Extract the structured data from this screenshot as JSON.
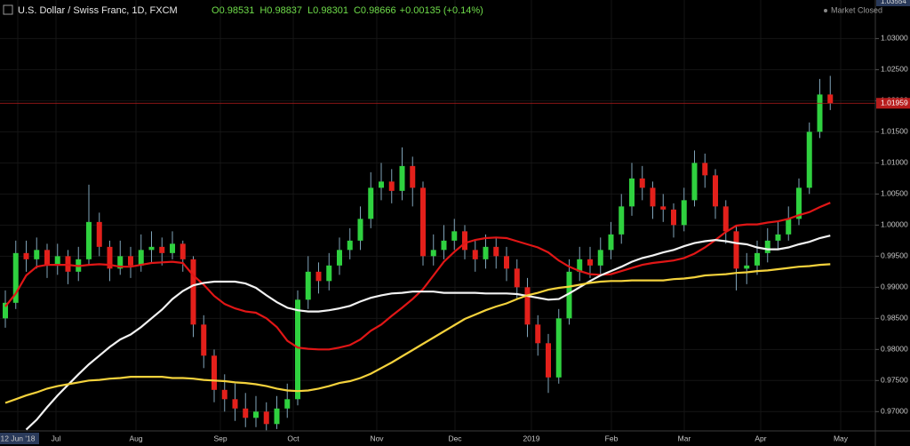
{
  "chart_data": {
    "type": "candlestick",
    "header": {
      "symbol": "U.S. Dollar / Swiss Franc, 1D, FXCM",
      "ohlc": [
        {
          "label": "O",
          "value": 0.98531
        },
        {
          "label": "H",
          "value": 0.98837
        },
        {
          "label": "L",
          "value": 0.98301
        },
        {
          "label": "C",
          "value": 0.98666
        }
      ],
      "change": "+0.00135 (+0.14%)"
    },
    "status": "Market Closed",
    "x_labels": [
      "12 Jun '18",
      "Jul",
      "Aug",
      "Sep",
      "Oct",
      "Nov",
      "Dec",
      "2019",
      "Feb",
      "Mar",
      "Apr",
      "May"
    ],
    "candles": {
      "up_color": "#2fd13f",
      "down_color": "#e3201b",
      "wick_color": "#7fa3b8",
      "open": [
        0.985,
        0.9875,
        0.9955,
        0.9945,
        0.996,
        0.9935,
        0.995,
        0.9925,
        0.9945,
        1.0005,
        0.9965,
        0.993,
        0.995,
        0.9935,
        0.996,
        0.9965,
        0.9955,
        0.997,
        0.9945,
        0.984,
        0.979,
        0.9735,
        0.972,
        0.9705,
        0.969,
        0.97,
        0.968,
        0.9705,
        0.972,
        0.988,
        0.9925,
        0.991,
        0.9935,
        0.996,
        0.9975,
        1.001,
        1.006,
        1.007,
        1.0055,
        1.0095,
        1.006,
        0.995,
        0.996,
        0.9975,
        0.999,
        0.996,
        0.9945,
        0.9965,
        0.995,
        0.993,
        0.99,
        0.984,
        0.981,
        0.9755,
        0.985,
        0.9925,
        0.9945,
        0.9935,
        0.996,
        0.9985,
        1.003,
        1.0075,
        1.006,
        1.003,
        1.0025,
        1.0,
        1.004,
        1.01,
        1.008,
        1.003,
        0.999,
        0.993,
        0.9935,
        0.9955,
        0.9975,
        0.9985,
        1.001,
        1.006,
        1.015,
        1.021
      ],
      "high": [
        0.9895,
        0.9975,
        0.9975,
        0.998,
        0.997,
        0.997,
        0.996,
        0.9965,
        1.0065,
        1.002,
        0.9975,
        0.9975,
        0.9965,
        0.9985,
        0.999,
        0.998,
        0.999,
        0.9975,
        0.995,
        0.9855,
        0.98,
        0.976,
        0.9745,
        0.973,
        0.9725,
        0.9715,
        0.9725,
        0.9745,
        0.9895,
        0.995,
        0.994,
        0.9955,
        0.998,
        0.9995,
        1.003,
        1.0085,
        1.01,
        1.009,
        1.0125,
        1.011,
        1.007,
        0.9985,
        1.0,
        1.001,
        1.0,
        0.9975,
        0.9985,
        0.998,
        0.9965,
        0.9945,
        0.9915,
        0.9855,
        0.9825,
        0.9865,
        0.9945,
        0.9965,
        0.9965,
        0.998,
        1.0005,
        1.005,
        1.01,
        1.0095,
        1.007,
        1.005,
        1.0035,
        1.006,
        1.012,
        1.0115,
        1.009,
        1.004,
        1.0,
        0.9955,
        0.9975,
        0.9995,
        1.0005,
        1.003,
        1.0075,
        1.0165,
        1.0235,
        1.024
      ],
      "low": [
        0.9835,
        0.9865,
        0.9925,
        0.993,
        0.9915,
        0.992,
        0.9905,
        0.991,
        0.9935,
        0.995,
        0.991,
        0.992,
        0.9915,
        0.9925,
        0.994,
        0.9935,
        0.9945,
        0.9925,
        0.982,
        0.977,
        0.9715,
        0.97,
        0.9685,
        0.9675,
        0.9675,
        0.967,
        0.9672,
        0.969,
        0.971,
        0.9865,
        0.989,
        0.9895,
        0.992,
        0.9945,
        0.996,
        0.9995,
        1.004,
        1.0035,
        1.004,
        1.003,
        0.9935,
        0.9935,
        0.9945,
        0.996,
        0.9945,
        0.9925,
        0.993,
        0.993,
        0.991,
        0.988,
        0.982,
        0.979,
        0.973,
        0.9745,
        0.984,
        0.991,
        0.9915,
        0.992,
        0.9945,
        0.997,
        1.0015,
        1.004,
        1.001,
        1.0005,
        0.998,
        0.999,
        1.003,
        1.006,
        1.001,
        0.997,
        0.9895,
        0.9905,
        0.992,
        0.994,
        0.996,
        0.9975,
        1.0,
        1.005,
        1.014,
        1.0185
      ],
      "close": [
        0.9875,
        0.9955,
        0.9945,
        0.996,
        0.9935,
        0.995,
        0.9925,
        0.9945,
        1.0005,
        0.9965,
        0.993,
        0.995,
        0.9935,
        0.996,
        0.9965,
        0.9955,
        0.997,
        0.9945,
        0.984,
        0.979,
        0.9735,
        0.972,
        0.9705,
        0.969,
        0.97,
        0.968,
        0.9705,
        0.972,
        0.988,
        0.9925,
        0.991,
        0.9935,
        0.996,
        0.9975,
        1.001,
        1.006,
        1.007,
        1.0055,
        1.0095,
        1.006,
        0.995,
        0.996,
        0.9975,
        0.999,
        0.996,
        0.9945,
        0.9965,
        0.995,
        0.993,
        0.99,
        0.984,
        0.981,
        0.9755,
        0.985,
        0.9925,
        0.9945,
        0.9935,
        0.996,
        0.9985,
        1.003,
        1.0075,
        1.006,
        1.003,
        1.0025,
        1.0,
        1.004,
        1.01,
        1.008,
        1.003,
        0.999,
        0.993,
        0.9935,
        0.9955,
        0.9975,
        0.9985,
        1.001,
        1.006,
        1.015,
        1.021,
        1.0196
      ]
    },
    "series": [
      {
        "color": "#e01616",
        "values": [
          0.9869,
          0.989,
          0.9919,
          0.9933,
          0.9936,
          0.9936,
          0.9936,
          0.9934,
          0.9936,
          0.9937,
          0.9936,
          0.9933,
          0.9933,
          0.9936,
          0.9939,
          0.994,
          0.9941,
          0.9939,
          0.9919,
          0.9904,
          0.9886,
          0.9873,
          0.9866,
          0.9861,
          0.9859,
          0.985,
          0.9836,
          0.9814,
          0.9803,
          0.9801,
          0.98,
          0.98,
          0.9803,
          0.9807,
          0.9816,
          0.983,
          0.984,
          0.9854,
          0.9867,
          0.9881,
          0.9897,
          0.9919,
          0.9941,
          0.9957,
          0.9971,
          0.9976,
          0.9979,
          0.998,
          0.9979,
          0.9974,
          0.9969,
          0.9964,
          0.9956,
          0.9943,
          0.9933,
          0.9926,
          0.9921,
          0.992,
          0.9921,
          0.9926,
          0.9931,
          0.9936,
          0.9939,
          0.9941,
          0.9943,
          0.9947,
          0.9954,
          0.9964,
          0.9976,
          0.9989,
          0.9999,
          1.0001,
          1.0001,
          1.0004,
          1.0006,
          1.001,
          1.0016,
          1.0021,
          1.0029,
          1.0036
        ]
      },
      {
        "color": "#f2f2f2",
        "values": [
          null,
          null,
          0.9671,
          0.9687,
          0.9707,
          0.9726,
          0.9743,
          0.976,
          0.9776,
          0.979,
          0.9804,
          0.9816,
          0.9824,
          0.9836,
          0.985,
          0.9864,
          0.9881,
          0.9894,
          0.9903,
          0.9907,
          0.9909,
          0.9909,
          0.9909,
          0.9906,
          0.9899,
          0.9887,
          0.9876,
          0.9867,
          0.9863,
          0.9861,
          0.9861,
          0.9863,
          0.9866,
          0.987,
          0.9877,
          0.9883,
          0.9887,
          0.989,
          0.9891,
          0.9893,
          0.9893,
          0.9893,
          0.9891,
          0.9891,
          0.9891,
          0.9891,
          0.989,
          0.989,
          0.989,
          0.9889,
          0.9886,
          0.9883,
          0.988,
          0.9881,
          0.989,
          0.99,
          0.991,
          0.9919,
          0.9926,
          0.9933,
          0.9941,
          0.9947,
          0.9951,
          0.9956,
          0.996,
          0.9966,
          0.9971,
          0.9974,
          0.9976,
          0.9974,
          0.9971,
          0.9969,
          0.9964,
          0.9961,
          0.9961,
          0.9964,
          0.9969,
          0.9973,
          0.9979,
          0.9983
        ]
      },
      {
        "color": "#f4d23c",
        "values": [
          0.9714,
          0.972,
          0.9726,
          0.9731,
          0.9737,
          0.9741,
          0.9744,
          0.9747,
          0.975,
          0.9751,
          0.9753,
          0.9754,
          0.9756,
          0.9756,
          0.9756,
          0.9756,
          0.9754,
          0.9754,
          0.9753,
          0.9751,
          0.975,
          0.9749,
          0.9747,
          0.9746,
          0.9744,
          0.9741,
          0.9737,
          0.9734,
          0.9733,
          0.9734,
          0.9737,
          0.9741,
          0.9746,
          0.9749,
          0.9754,
          0.9761,
          0.977,
          0.9779,
          0.9789,
          0.9799,
          0.9809,
          0.9819,
          0.9829,
          0.9839,
          0.9849,
          0.9856,
          0.9863,
          0.9869,
          0.9874,
          0.9881,
          0.9887,
          0.9891,
          0.9896,
          0.9899,
          0.9901,
          0.9904,
          0.9907,
          0.9909,
          0.991,
          0.991,
          0.9911,
          0.9911,
          0.9911,
          0.9911,
          0.9913,
          0.9914,
          0.9916,
          0.9919,
          0.992,
          0.9921,
          0.9923,
          0.9924,
          0.9926,
          0.9927,
          0.9929,
          0.9931,
          0.9933,
          0.9934,
          0.9936,
          0.9937
        ]
      }
    ],
    "ylim": [
      0.9669,
      1.0362
    ],
    "yticks": [
      {
        "value": 1.03,
        "label": "1.03000"
      },
      {
        "value": 1.025,
        "label": "1.02500"
      },
      {
        "value": 1.02,
        "label": "1.02000"
      },
      {
        "value": 1.015,
        "label": "1.01500"
      },
      {
        "value": 1.01,
        "label": "1.01000"
      },
      {
        "value": 1.005,
        "label": "1.00500"
      },
      {
        "value": 1.0,
        "label": "1.00000"
      },
      {
        "value": 0.995,
        "label": "0.99500"
      },
      {
        "value": 0.99,
        "label": "0.99000"
      },
      {
        "value": 0.985,
        "label": "0.98500"
      },
      {
        "value": 0.98,
        "label": "0.98000"
      },
      {
        "value": 0.975,
        "label": "0.97500"
      },
      {
        "value": 0.97,
        "label": "0.97000"
      }
    ],
    "grid": true,
    "last_price": 1.01959,
    "last_price_color": "#b71c1c",
    "top_price": 1.03554
  }
}
